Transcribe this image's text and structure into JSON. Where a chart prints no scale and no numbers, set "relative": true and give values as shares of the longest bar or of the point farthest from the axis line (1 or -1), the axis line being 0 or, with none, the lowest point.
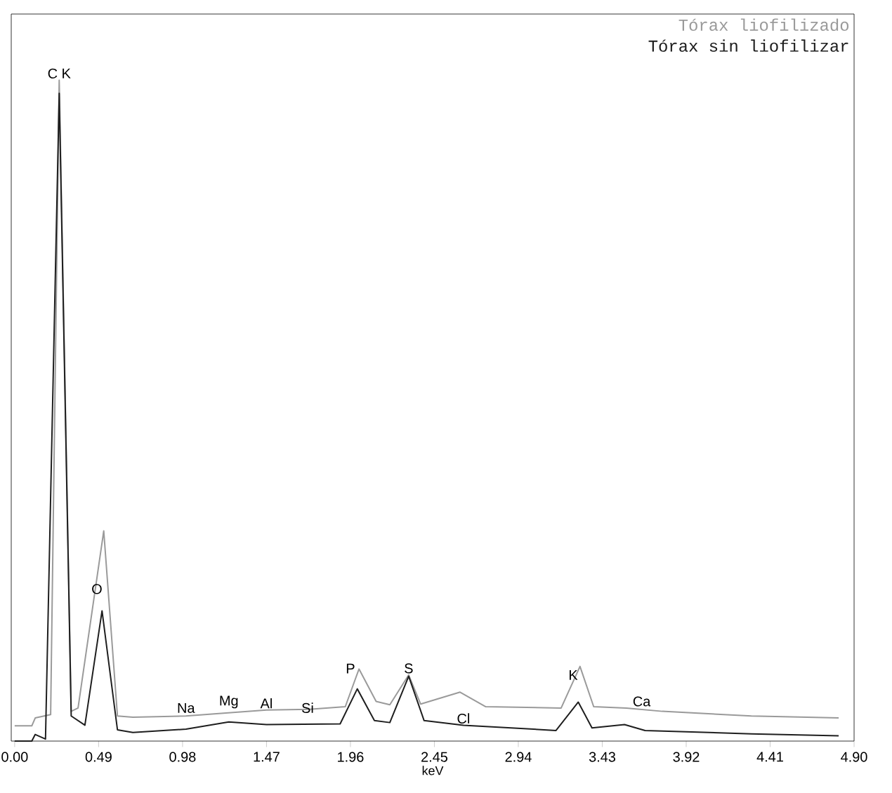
{
  "chart_data": {
    "type": "line",
    "relative": true,
    "xlabel": "keV",
    "xlim": [
      -0.02,
      4.9
    ],
    "xticks": [
      {
        "value": 0,
        "label": "0.00"
      },
      0.49,
      0.98,
      1.47,
      1.96,
      2.45,
      2.94,
      3.43,
      3.92,
      4.41,
      {
        "value": 4.9,
        "label": "4.90"
      }
    ],
    "legend": "top right",
    "marker": "none",
    "line_style": "solid",
    "grid": false,
    "series": [
      {
        "name": "Tórax liofilizado",
        "color": "#9a9a9a",
        "x": [
          0,
          0.1,
          0.12,
          0.21,
          0.26,
          0.33,
          0.37,
          0.52,
          0.6,
          0.69,
          1.0,
          1.47,
          1.72,
          1.93,
          2.01,
          2.11,
          2.19,
          2.3,
          2.37,
          2.6,
          2.75,
          3.19,
          3.3,
          3.38,
          3.57,
          3.78,
          4.3,
          4.81
        ],
        "values": [
          0.023,
          0.023,
          0.035,
          0.04,
          1.0,
          0.045,
          0.05,
          0.318,
          0.038,
          0.036,
          0.038,
          0.047,
          0.048,
          0.052,
          0.109,
          0.06,
          0.055,
          0.1,
          0.056,
          0.074,
          0.052,
          0.05,
          0.113,
          0.052,
          0.05,
          0.045,
          0.038,
          0.035
        ]
      },
      {
        "name": "Tórax sin liofilizar",
        "color": "#1e1e1e",
        "x": [
          0,
          0.1,
          0.12,
          0.18,
          0.26,
          0.33,
          0.41,
          0.51,
          0.6,
          0.69,
          1.0,
          1.25,
          1.47,
          1.9,
          2.0,
          2.1,
          2.19,
          2.3,
          2.39,
          2.62,
          3.16,
          3.29,
          3.37,
          3.56,
          3.68,
          4.3,
          4.81
        ],
        "values": [
          0.0,
          0.0,
          0.01,
          0.003,
          0.98,
          0.038,
          0.024,
          0.197,
          0.017,
          0.013,
          0.018,
          0.029,
          0.025,
          0.026,
          0.079,
          0.031,
          0.028,
          0.098,
          0.031,
          0.024,
          0.016,
          0.059,
          0.02,
          0.025,
          0.016,
          0.011,
          0.008
        ]
      }
    ],
    "annotations": [
      {
        "text": "C K",
        "x": 0.26,
        "y": 1.0
      },
      {
        "text": "O",
        "x": 0.48,
        "y": 0.22
      },
      {
        "text": "Na",
        "x": 1.0,
        "y": 0.04
      },
      {
        "text": "Mg",
        "x": 1.25,
        "y": 0.047
      },
      {
        "text": "Al",
        "x": 1.47,
        "y": 0.047
      },
      {
        "text": "Si",
        "x": 1.71,
        "y": 0.04
      },
      {
        "text": "P",
        "x": 1.96,
        "y": 0.1
      },
      {
        "text": "S",
        "x": 2.3,
        "y": 0.1
      },
      {
        "text": "Cl",
        "x": 2.62,
        "y": 0.024
      },
      {
        "text": "K",
        "x": 3.26,
        "y": 0.09
      },
      {
        "text": "Ca",
        "x": 3.66,
        "y": 0.05
      }
    ]
  }
}
